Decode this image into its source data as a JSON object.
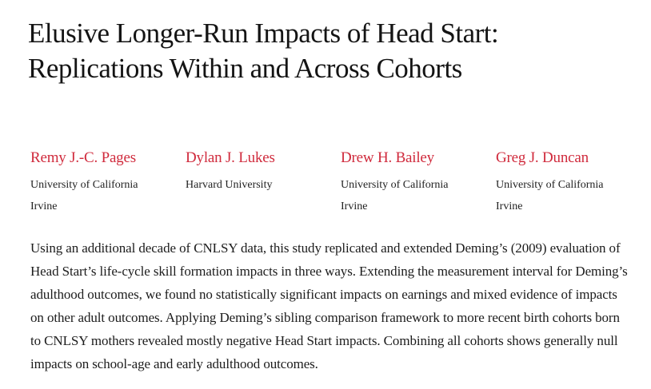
{
  "page": {
    "background_color": "#ffffff",
    "accent_color": "#d02b3d",
    "title_color": "#141414"
  },
  "title": {
    "lines": [
      "Elusive Longer-Run Impacts of Head Start:",
      "Replications Within and Across Cohorts"
    ]
  },
  "authors": [
    {
      "name": "Remy J.-C. Pages",
      "affiliation_line1": "University of California",
      "affiliation_line2": "Irvine"
    },
    {
      "name": "Dylan J. Lukes",
      "affiliation_line1": "Harvard University",
      "affiliation_line2": ""
    },
    {
      "name": "Drew H. Bailey",
      "affiliation_line1": "University of California",
      "affiliation_line2": "Irvine"
    },
    {
      "name": "Greg J. Duncan",
      "affiliation_line1": "University of California",
      "affiliation_line2": "Irvine"
    }
  ],
  "abstract": {
    "text": "Using an additional decade of CNLSY data, this study replicated and extended Deming’s (2009) evaluation of Head Start’s life-cycle skill formation impacts in three ways. Extending the measurement interval for Deming’s adulthood outcomes, we found no statistically significant impacts on earnings and mixed evidence of impacts on other adult outcomes. Applying Deming’s sibling comparison framework to more recent birth cohorts born to CNLSY mothers revealed mostly negative Head Start impacts. Combining all cohorts shows generally null impacts on school-age and early adulthood outcomes."
  }
}
